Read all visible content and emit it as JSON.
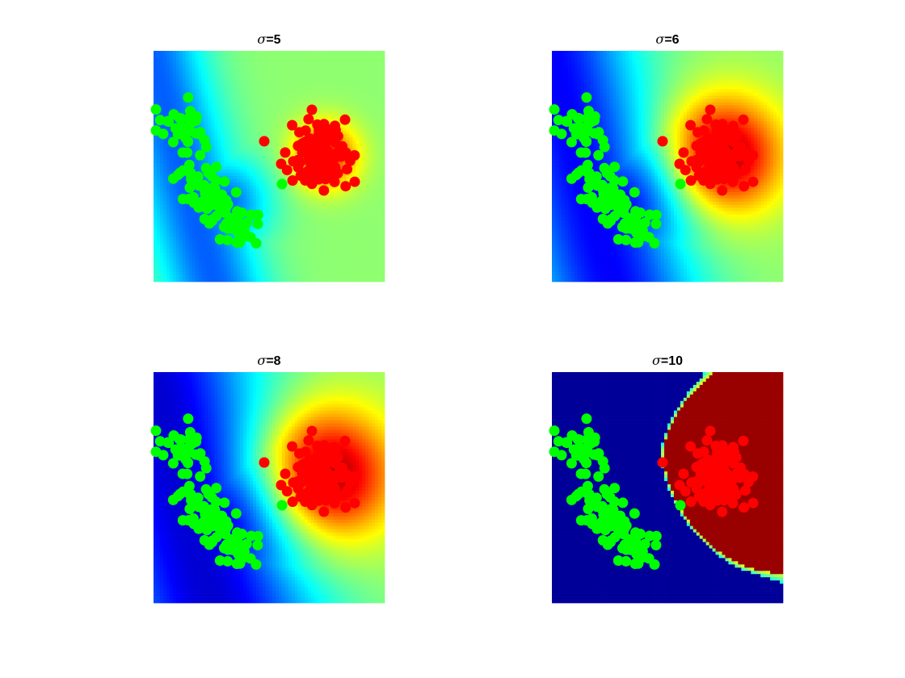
{
  "figure": {
    "background": "#ffffff",
    "colormap": "jet",
    "point_colors": {
      "class_a": "#00ff00",
      "class_b": "#ff0000"
    }
  },
  "chart_data": [
    {
      "type": "heatmap",
      "title_symbol": "σ",
      "title_value": "=5",
      "field": {
        "a_min": 0.9,
        "b_min": 1.0
      },
      "axes_visible": false,
      "grid": false,
      "legend": "none",
      "series": [
        {
          "name": "",
          "class": "a",
          "color": "#00ff00",
          "count": 130
        },
        {
          "name": "",
          "class": "b",
          "color": "#ff0000",
          "count": 120
        }
      ]
    },
    {
      "type": "heatmap",
      "title_symbol": "σ",
      "title_value": "=6",
      "field": {
        "a_min": 0.55,
        "b_min": 0.45
      },
      "axes_visible": false,
      "grid": false,
      "legend": "none",
      "series": [
        {
          "name": "",
          "class": "a",
          "color": "#00ff00",
          "count": 130
        },
        {
          "name": "",
          "class": "b",
          "color": "#ff0000",
          "count": 120
        }
      ]
    },
    {
      "type": "heatmap",
      "title_symbol": "σ",
      "title_value": "=8",
      "field": {
        "a_min": 0.3,
        "b_min": 0.25
      },
      "axes_visible": false,
      "grid": false,
      "legend": "none",
      "series": [
        {
          "name": "",
          "class": "a",
          "color": "#00ff00",
          "count": 130
        },
        {
          "name": "",
          "class": "b",
          "color": "#ff0000",
          "count": 120
        }
      ]
    },
    {
      "type": "heatmap",
      "title_symbol": "σ",
      "title_value": "=10",
      "field": {
        "a_min": 0.0,
        "b_min": 0.0
      },
      "axes_visible": false,
      "grid": false,
      "legend": "none",
      "series": [
        {
          "name": "",
          "class": "a",
          "color": "#00ff00",
          "count": 130
        },
        {
          "name": "",
          "class": "b",
          "color": "#ff0000",
          "count": 120
        }
      ]
    }
  ]
}
